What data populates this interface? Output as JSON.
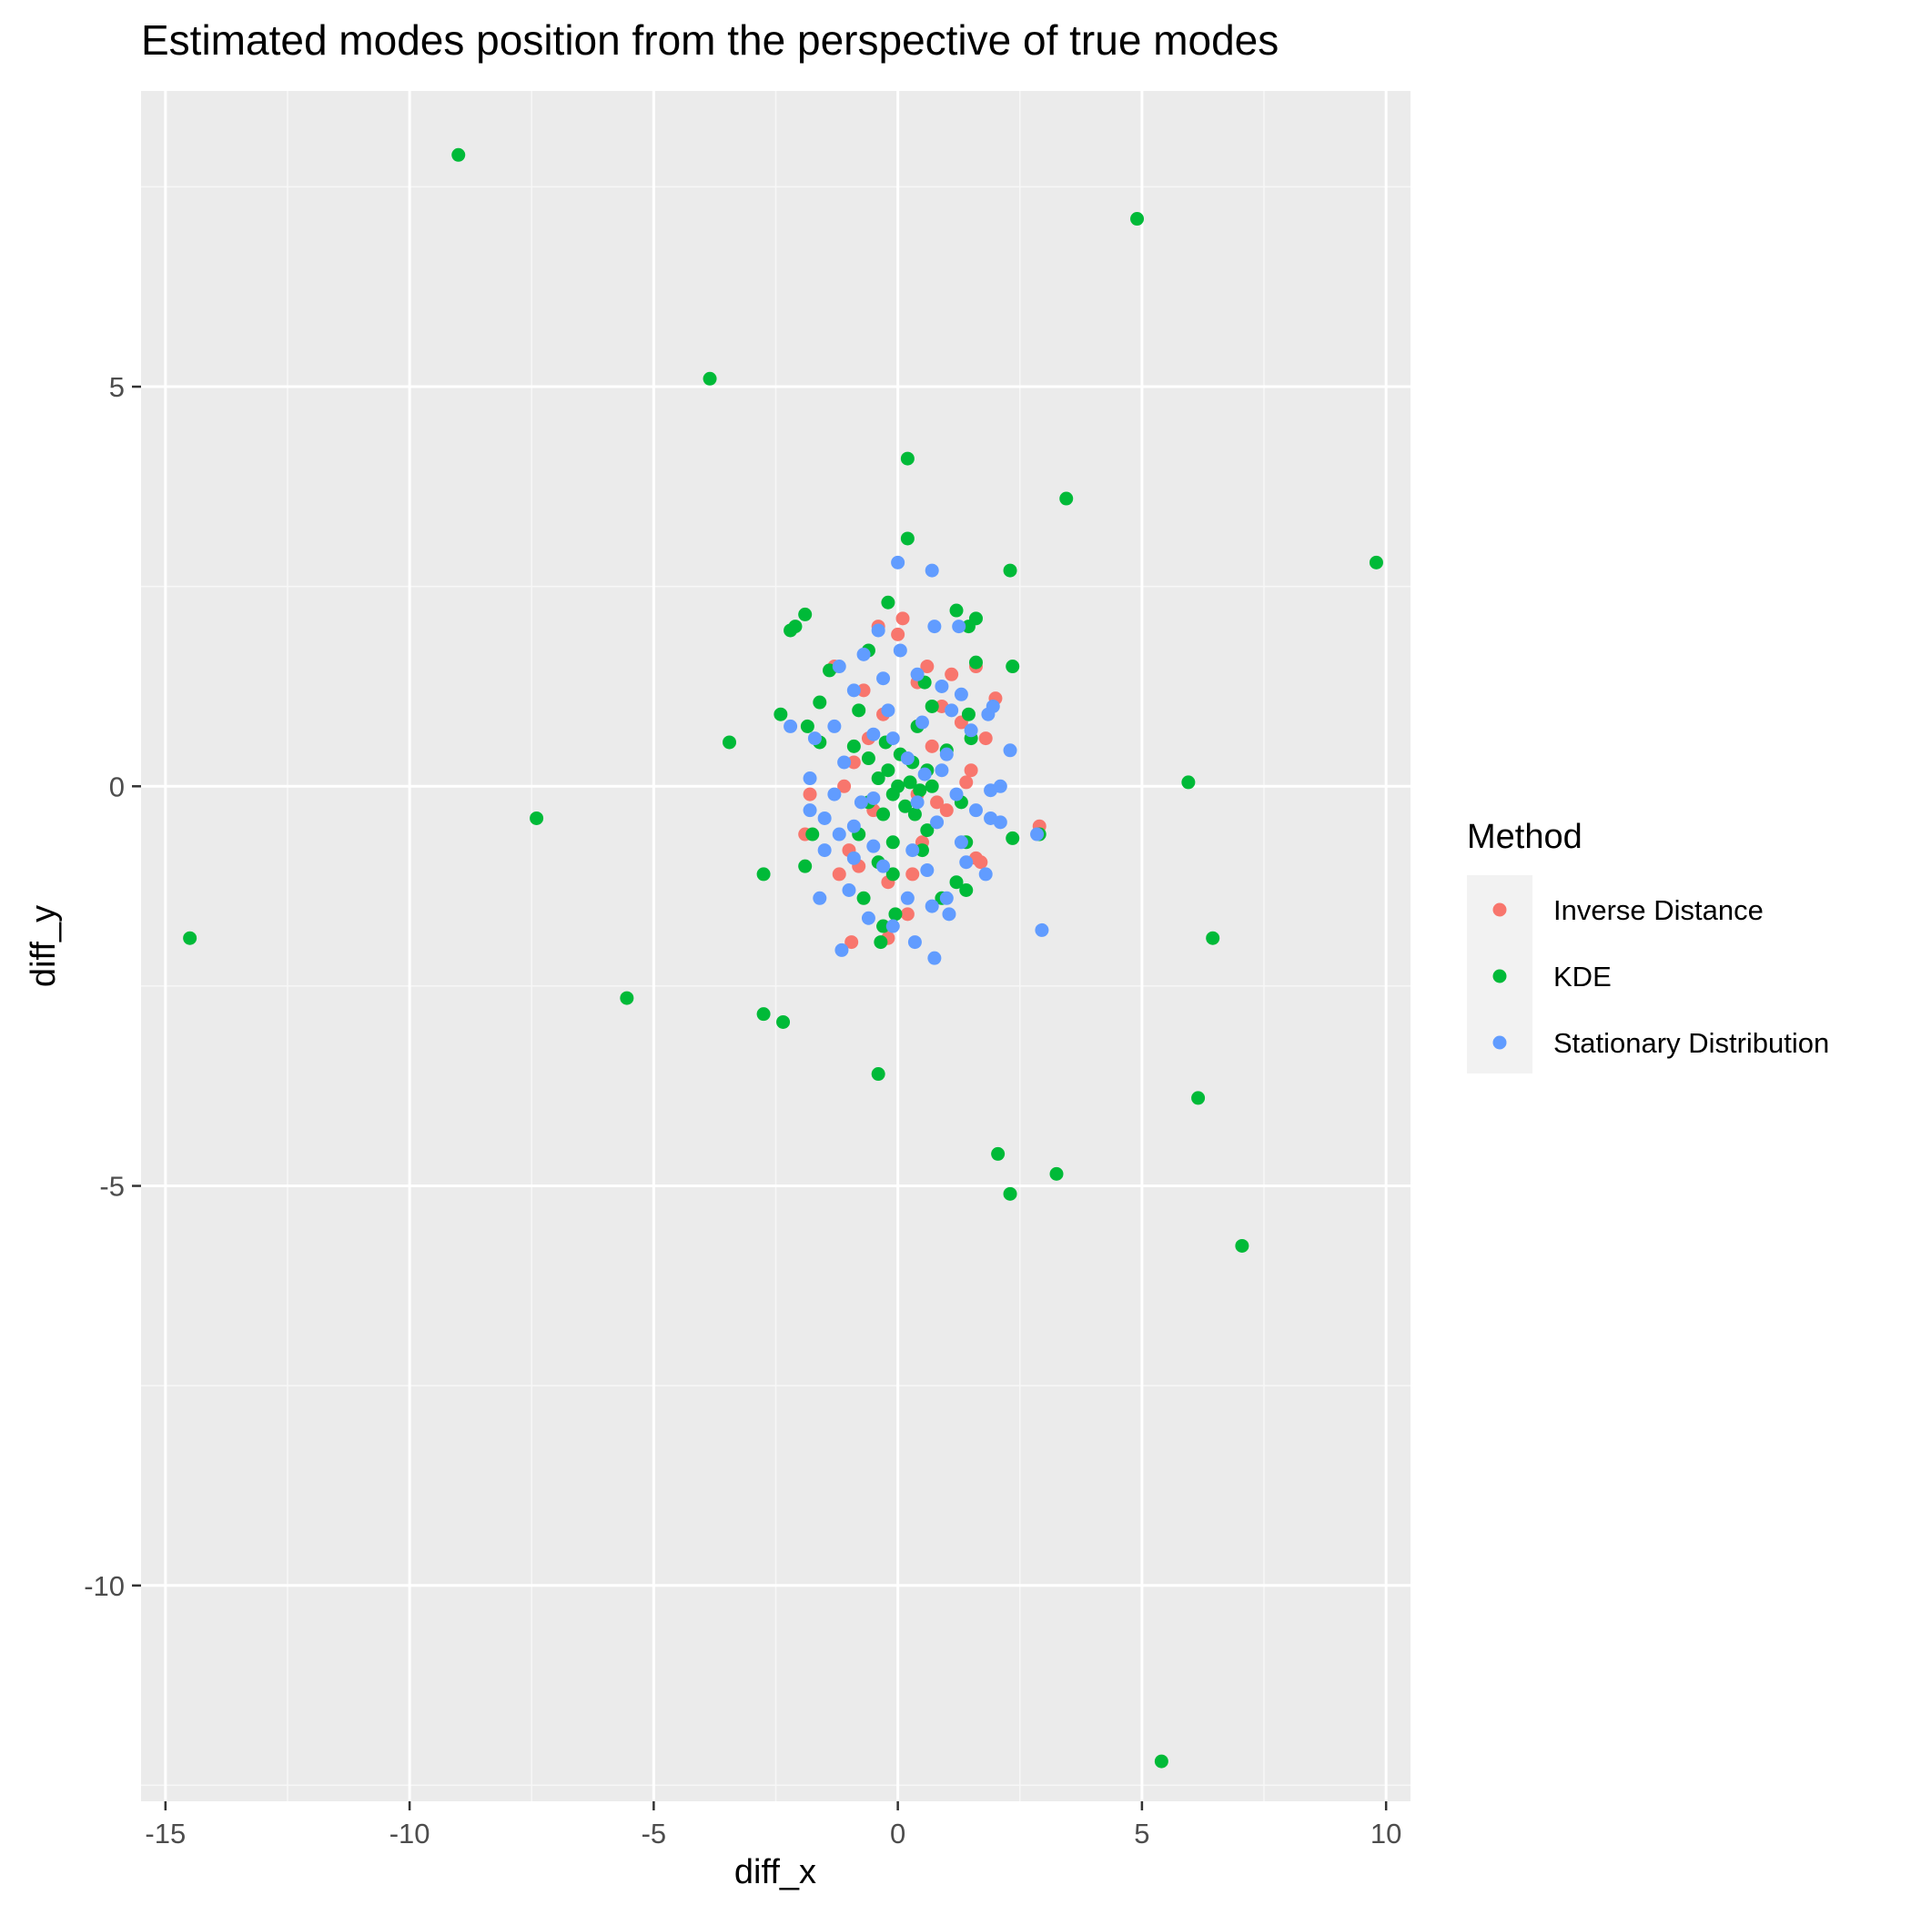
{
  "chart_data": {
    "type": "scatter",
    "title": "Estimated modes position from the perspective of true modes",
    "xlabel": "diff_x",
    "ylabel": "diff_y",
    "xlim": [
      -15.5,
      10.5
    ],
    "ylim": [
      -12.7,
      8.7
    ],
    "x_ticks": [
      -15,
      -10,
      -5,
      0,
      5,
      10
    ],
    "x_tick_labels": [
      "-15",
      "-10",
      "-5",
      "0",
      "5",
      "10"
    ],
    "y_ticks": [
      -10,
      -5,
      0,
      5
    ],
    "y_tick_labels": [
      "-10",
      "-5",
      "0",
      "5"
    ],
    "grid": true,
    "panel_background": "#ebebeb",
    "legend": {
      "title": "Method",
      "placement": "right"
    },
    "series": [
      {
        "name": "Inverse Distance",
        "color": "#f8766d",
        "points": [
          [
            0.1,
            2.1
          ],
          [
            -0.4,
            2.0
          ],
          [
            0.0,
            1.9
          ],
          [
            -1.3,
            1.5
          ],
          [
            0.6,
            1.5
          ],
          [
            1.6,
            1.5
          ],
          [
            1.1,
            1.4
          ],
          [
            2.0,
            1.1
          ],
          [
            0.4,
            1.3
          ],
          [
            -0.7,
            1.2
          ],
          [
            0.9,
            1.0
          ],
          [
            1.3,
            0.8
          ],
          [
            -0.6,
            0.6
          ],
          [
            1.8,
            0.6
          ],
          [
            0.7,
            0.5
          ],
          [
            -0.9,
            0.3
          ],
          [
            1.5,
            0.2
          ],
          [
            -1.1,
            0.0
          ],
          [
            1.4,
            0.05
          ],
          [
            -1.8,
            -0.1
          ],
          [
            0.4,
            -0.1
          ],
          [
            -1.9,
            -0.6
          ],
          [
            -0.5,
            -0.3
          ],
          [
            1.0,
            -0.3
          ],
          [
            2.9,
            -0.5
          ],
          [
            -1.0,
            -0.8
          ],
          [
            0.5,
            -0.7
          ],
          [
            1.6,
            -0.9
          ],
          [
            1.7,
            -0.95
          ],
          [
            -0.8,
            -1.0
          ],
          [
            -1.2,
            -1.1
          ],
          [
            0.3,
            -1.1
          ],
          [
            -0.2,
            -1.2
          ],
          [
            -0.95,
            -1.95
          ],
          [
            -0.2,
            -1.9
          ],
          [
            0.2,
            -1.6
          ],
          [
            -0.3,
            0.9
          ],
          [
            0.8,
            -0.2
          ]
        ]
      },
      {
        "name": "KDE",
        "color": "#00ba38",
        "points": [
          [
            -9.0,
            7.9
          ],
          [
            4.9,
            7.1
          ],
          [
            -3.85,
            5.1
          ],
          [
            0.2,
            4.1
          ],
          [
            3.45,
            3.6
          ],
          [
            0.2,
            3.1
          ],
          [
            2.3,
            2.7
          ],
          [
            9.8,
            2.8
          ],
          [
            -0.2,
            2.3
          ],
          [
            1.2,
            2.2
          ],
          [
            1.6,
            2.1
          ],
          [
            -1.9,
            2.15
          ],
          [
            -2.1,
            2.0
          ],
          [
            -2.2,
            1.95
          ],
          [
            1.45,
            2.0
          ],
          [
            -0.6,
            1.7
          ],
          [
            1.6,
            1.55
          ],
          [
            2.35,
            1.5
          ],
          [
            -1.4,
            1.45
          ],
          [
            0.55,
            1.3
          ],
          [
            -1.6,
            1.05
          ],
          [
            -0.8,
            0.95
          ],
          [
            0.7,
            1.0
          ],
          [
            -2.4,
            0.9
          ],
          [
            1.45,
            0.9
          ],
          [
            -1.85,
            0.75
          ],
          [
            0.4,
            0.75
          ],
          [
            -1.6,
            0.55
          ],
          [
            -3.45,
            0.55
          ],
          [
            1.5,
            0.6
          ],
          [
            -0.9,
            0.5
          ],
          [
            1.0,
            0.45
          ],
          [
            -0.6,
            0.35
          ],
          [
            0.3,
            0.3
          ],
          [
            -0.2,
            0.2
          ],
          [
            0.6,
            0.2
          ],
          [
            5.95,
            0.05
          ],
          [
            -0.4,
            0.1
          ],
          [
            0.0,
            0.0
          ],
          [
            0.25,
            0.05
          ],
          [
            -0.1,
            -0.1
          ],
          [
            0.45,
            -0.05
          ],
          [
            -0.6,
            -0.2
          ],
          [
            1.3,
            -0.2
          ],
          [
            0.15,
            -0.25
          ],
          [
            -0.3,
            -0.35
          ],
          [
            -7.4,
            -0.4
          ],
          [
            -1.75,
            -0.6
          ],
          [
            2.35,
            -0.65
          ],
          [
            2.9,
            -0.6
          ],
          [
            -0.8,
            -0.6
          ],
          [
            0.6,
            -0.55
          ],
          [
            1.4,
            -0.7
          ],
          [
            -0.1,
            -0.7
          ],
          [
            0.5,
            -0.8
          ],
          [
            -1.9,
            -1.0
          ],
          [
            -0.4,
            -0.95
          ],
          [
            -0.1,
            -1.1
          ],
          [
            -2.75,
            -1.1
          ],
          [
            1.2,
            -1.2
          ],
          [
            1.4,
            -1.3
          ],
          [
            -0.7,
            -1.4
          ],
          [
            0.9,
            -1.4
          ],
          [
            -0.05,
            -1.6
          ],
          [
            -0.3,
            -1.75
          ],
          [
            -0.35,
            -1.95
          ],
          [
            -14.5,
            -1.9
          ],
          [
            6.45,
            -1.9
          ],
          [
            -5.55,
            -2.65
          ],
          [
            -2.75,
            -2.85
          ],
          [
            -2.35,
            -2.95
          ],
          [
            -0.4,
            -3.6
          ],
          [
            6.15,
            -3.9
          ],
          [
            2.05,
            -4.6
          ],
          [
            3.25,
            -4.85
          ],
          [
            2.3,
            -5.1
          ],
          [
            7.05,
            -5.75
          ],
          [
            5.4,
            -12.2
          ],
          [
            0.05,
            0.4
          ],
          [
            -0.25,
            0.55
          ],
          [
            0.35,
            -0.35
          ],
          [
            0.7,
            0.0
          ]
        ]
      },
      {
        "name": "Stationary Distribution",
        "color": "#619cff",
        "points": [
          [
            0.0,
            2.8
          ],
          [
            0.7,
            2.7
          ],
          [
            -0.4,
            1.95
          ],
          [
            0.75,
            2.0
          ],
          [
            1.25,
            2.0
          ],
          [
            0.05,
            1.7
          ],
          [
            -0.7,
            1.65
          ],
          [
            -1.2,
            1.5
          ],
          [
            -0.3,
            1.35
          ],
          [
            0.4,
            1.4
          ],
          [
            -0.9,
            1.2
          ],
          [
            0.9,
            1.25
          ],
          [
            1.3,
            1.15
          ],
          [
            1.95,
            1.0
          ],
          [
            1.1,
            0.95
          ],
          [
            -0.2,
            0.95
          ],
          [
            1.85,
            0.9
          ],
          [
            -2.2,
            0.75
          ],
          [
            -1.3,
            0.75
          ],
          [
            0.5,
            0.8
          ],
          [
            1.5,
            0.7
          ],
          [
            -0.5,
            0.65
          ],
          [
            -1.7,
            0.6
          ],
          [
            2.3,
            0.45
          ],
          [
            1.0,
            0.4
          ],
          [
            -1.1,
            0.3
          ],
          [
            0.2,
            0.35
          ],
          [
            -1.8,
            0.1
          ],
          [
            0.9,
            0.2
          ],
          [
            1.9,
            -0.05
          ],
          [
            2.1,
            0.0
          ],
          [
            -1.3,
            -0.1
          ],
          [
            1.2,
            -0.1
          ],
          [
            -0.5,
            -0.15
          ],
          [
            0.4,
            -0.2
          ],
          [
            -1.8,
            -0.3
          ],
          [
            -1.5,
            -0.4
          ],
          [
            1.6,
            -0.3
          ],
          [
            2.1,
            -0.45
          ],
          [
            1.9,
            -0.4
          ],
          [
            -0.9,
            -0.5
          ],
          [
            0.8,
            -0.45
          ],
          [
            -1.2,
            -0.6
          ],
          [
            2.85,
            -0.6
          ],
          [
            -1.5,
            -0.8
          ],
          [
            1.3,
            -0.7
          ],
          [
            -0.5,
            -0.75
          ],
          [
            0.3,
            -0.8
          ],
          [
            -0.9,
            -0.9
          ],
          [
            1.4,
            -0.95
          ],
          [
            1.8,
            -1.1
          ],
          [
            -0.3,
            -1.0
          ],
          [
            0.6,
            -1.05
          ],
          [
            -1.0,
            -1.3
          ],
          [
            -1.6,
            -1.4
          ],
          [
            0.2,
            -1.4
          ],
          [
            1.0,
            -1.4
          ],
          [
            0.7,
            -1.5
          ],
          [
            1.05,
            -1.6
          ],
          [
            -0.6,
            -1.65
          ],
          [
            2.95,
            -1.8
          ],
          [
            -0.1,
            -1.75
          ],
          [
            0.35,
            -1.95
          ],
          [
            -1.15,
            -2.05
          ],
          [
            0.75,
            -2.15
          ],
          [
            -0.1,
            0.6
          ],
          [
            0.55,
            0.15
          ],
          [
            -0.75,
            -0.2
          ]
        ]
      }
    ]
  }
}
